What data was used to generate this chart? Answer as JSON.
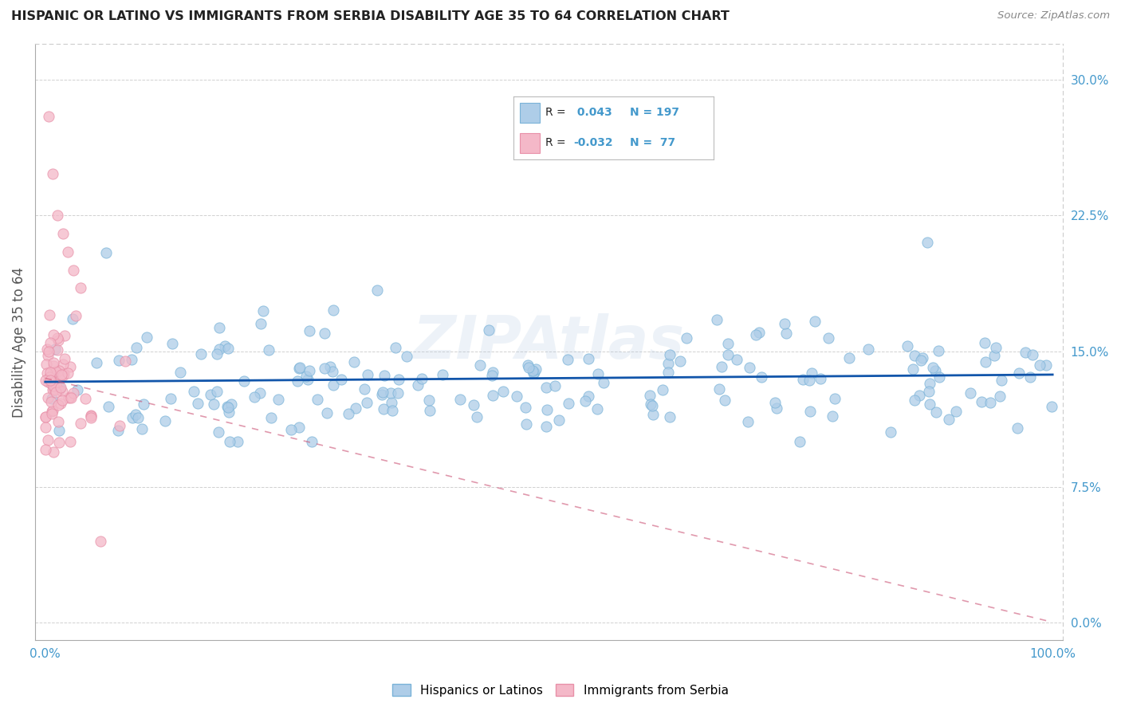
{
  "title": "HISPANIC OR LATINO VS IMMIGRANTS FROM SERBIA DISABILITY AGE 35 TO 64 CORRELATION CHART",
  "source_text": "Source: ZipAtlas.com",
  "ylabel": "Disability Age 35 to 64",
  "xlim": [
    -1,
    101
  ],
  "ylim": [
    -1,
    32
  ],
  "yticks": [
    0,
    7.5,
    15.0,
    22.5,
    30.0
  ],
  "xticks": [
    0,
    10,
    20,
    30,
    40,
    50,
    60,
    70,
    80,
    90,
    100
  ],
  "blue_R": 0.043,
  "blue_N": 197,
  "pink_R": -0.032,
  "pink_N": 77,
  "blue_color": "#aecde8",
  "blue_edge": "#7ab3d8",
  "pink_color": "#f4b8c8",
  "pink_edge": "#e890a8",
  "blue_line_color": "#1155aa",
  "pink_line_color": "#cc5577",
  "legend_label_blue": "Hispanics or Latinos",
  "legend_label_pink": "Immigrants from Serbia",
  "watermark": "ZIPAtlas",
  "grid_color": "#cccccc",
  "background_color": "#ffffff",
  "title_color": "#222222",
  "axis_label_color": "#555555",
  "tick_label_color": "#4499cc",
  "blue_line_y0": 13.3,
  "blue_line_y100": 13.7,
  "pink_line_y0": 13.5,
  "pink_line_y100": 0.0
}
